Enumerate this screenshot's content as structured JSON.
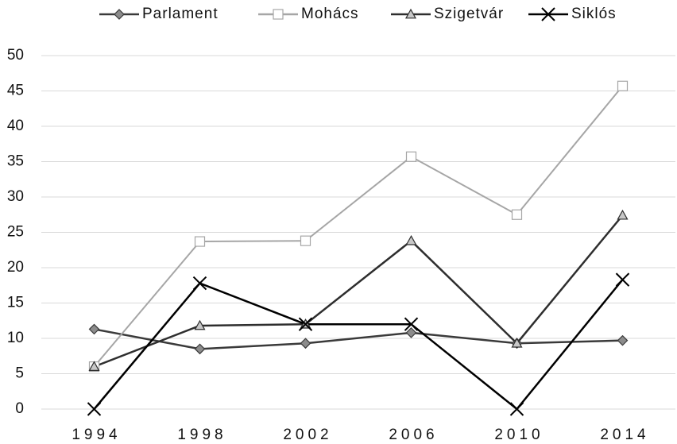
{
  "chart_data": {
    "type": "line",
    "categories": [
      "1994",
      "1998",
      "2002",
      "2006",
      "2010",
      "2014"
    ],
    "series": [
      {
        "name": "Parlament",
        "color": "#3a3a3a",
        "marker": "diamond",
        "marker_fill": "#8c8c8c",
        "values": [
          11.3,
          8.5,
          9.3,
          10.8,
          9.3,
          9.7
        ]
      },
      {
        "name": "Mohács",
        "color": "#a6a6a6",
        "marker": "square",
        "marker_fill": "#ffffff",
        "values": [
          6.0,
          23.7,
          23.8,
          35.7,
          27.5,
          45.7
        ]
      },
      {
        "name": "Szigetvár",
        "color": "#2e2e2e",
        "marker": "triangle",
        "marker_fill": "#c8c8c8",
        "values": [
          6.0,
          11.8,
          12.0,
          23.8,
          9.3,
          27.4
        ]
      },
      {
        "name": "Siklós",
        "color": "#000000",
        "marker": "x",
        "marker_fill": "#000000",
        "values": [
          0,
          17.8,
          12.0,
          12.0,
          0,
          18.3
        ]
      }
    ],
    "ylim": [
      0,
      50
    ],
    "yticks": [
      0,
      5,
      10,
      15,
      20,
      25,
      30,
      35,
      40,
      45,
      50
    ],
    "grid": true,
    "legend": "top"
  }
}
